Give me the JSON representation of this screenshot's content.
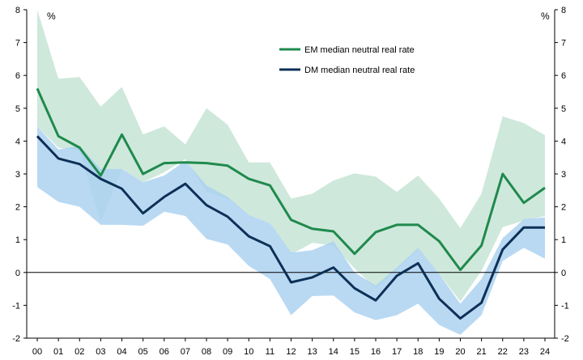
{
  "chart_data": {
    "type": "line",
    "title": "",
    "xlabel": "",
    "ylabel": "%",
    "y_unit_left": "%",
    "y_unit_right": "%",
    "ylim": [
      -2,
      8
    ],
    "yticks": [
      -2,
      -1,
      0,
      1,
      2,
      3,
      4,
      5,
      6,
      7,
      8
    ],
    "grid": false,
    "legend_position": "top-center",
    "categories": [
      "00",
      "01",
      "02",
      "03",
      "04",
      "05",
      "06",
      "07",
      "08",
      "09",
      "10",
      "11",
      "12",
      "13",
      "14",
      "15",
      "16",
      "17",
      "18",
      "19",
      "20",
      "21",
      "22",
      "23",
      "24"
    ],
    "colors": {
      "em_line": "#1f8a4c",
      "em_band": "#cfe8dc",
      "dm_line": "#0d3057",
      "dm_band": "#a8d0f0"
    },
    "series": [
      {
        "name": "EM median neutral real rate",
        "values": [
          5.6,
          4.15,
          3.8,
          2.95,
          4.2,
          3.0,
          3.33,
          3.35,
          3.33,
          3.25,
          2.85,
          2.65,
          1.6,
          1.33,
          1.25,
          0.57,
          1.23,
          1.45,
          1.45,
          0.95,
          0.08,
          0.82,
          3.0,
          2.12,
          2.58
        ]
      },
      {
        "name": "DM median neutral real rate",
        "values": [
          4.15,
          3.47,
          3.3,
          2.85,
          2.55,
          1.8,
          2.3,
          2.7,
          2.05,
          1.7,
          1.1,
          0.8,
          -0.3,
          -0.15,
          0.15,
          -0.48,
          -0.85,
          -0.1,
          0.28,
          -0.8,
          -1.4,
          -0.92,
          0.7,
          1.37,
          1.37
        ]
      }
    ],
    "bands": [
      {
        "name": "EM range",
        "upper": [
          8.0,
          5.9,
          5.95,
          5.05,
          5.65,
          4.2,
          4.45,
          3.9,
          5.0,
          4.5,
          3.35,
          3.35,
          2.25,
          2.4,
          2.8,
          3.02,
          2.92,
          2.45,
          2.95,
          2.25,
          1.35,
          2.4,
          4.75,
          4.55,
          4.18
        ],
        "lower": [
          4.45,
          3.8,
          3.7,
          1.55,
          3.15,
          2.75,
          3.05,
          3.45,
          2.45,
          2.25,
          1.75,
          1.5,
          0.55,
          0.9,
          0.82,
          0.12,
          -0.48,
          0.1,
          0.72,
          -0.05,
          -0.88,
          0.05,
          1.38,
          1.58,
          1.72
        ]
      },
      {
        "name": "DM range",
        "upper": [
          4.45,
          3.75,
          3.85,
          3.15,
          3.15,
          2.75,
          2.95,
          3.4,
          2.65,
          2.3,
          1.75,
          1.5,
          0.6,
          0.68,
          0.95,
          0.0,
          -0.4,
          0.15,
          0.75,
          -0.05,
          -0.95,
          -0.2,
          1.05,
          1.62,
          1.68
        ],
        "lower": [
          2.6,
          2.15,
          2.0,
          1.45,
          1.45,
          1.42,
          1.85,
          1.72,
          1.02,
          0.85,
          0.2,
          -0.2,
          -1.3,
          -0.72,
          -0.7,
          -1.22,
          -1.45,
          -1.3,
          -0.95,
          -1.6,
          -1.9,
          -1.3,
          0.35,
          0.75,
          0.42
        ]
      }
    ]
  }
}
